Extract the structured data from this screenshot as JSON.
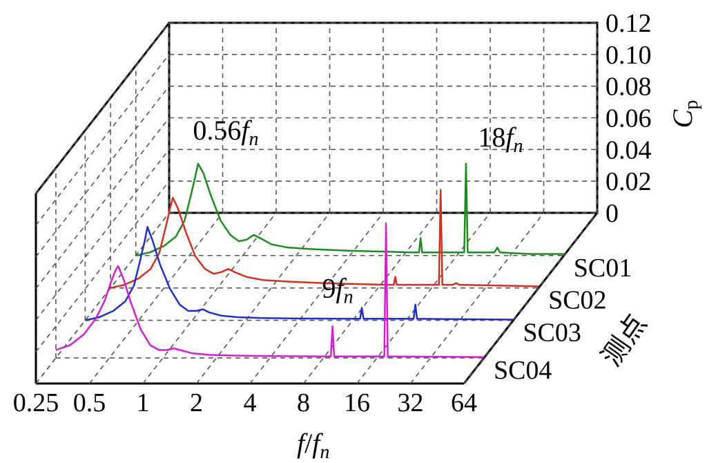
{
  "chart_data": {
    "type": "line",
    "style": "3d-waterfall",
    "x_scale": "log2",
    "xlim": [
      0.25,
      64
    ],
    "ylim": [
      0,
      0.12
    ],
    "x_ticks": [
      "0.25",
      "0.5",
      "1",
      "2",
      "4",
      "8",
      "16",
      "32",
      "64"
    ],
    "z_ticks": [
      "0",
      "0.02",
      "0.04",
      "0.06",
      "0.08",
      "0.10",
      "0.12"
    ],
    "xlabel": "f/fn",
    "ylabel": "Cp",
    "depth_label": "测点",
    "categories": [
      "SC01",
      "SC02",
      "SC03",
      "SC04"
    ],
    "annotations": [
      {
        "label": "0.56fn",
        "series": "SC01"
      },
      {
        "label": "18fn",
        "series": "SC01"
      },
      {
        "label": "9fn",
        "series": "SC03"
      }
    ],
    "series": [
      {
        "name": "SC01",
        "color": "#1f8a1f",
        "points": [
          [
            0.25,
            0.0
          ],
          [
            0.3,
            0.002
          ],
          [
            0.36,
            0.006
          ],
          [
            0.42,
            0.012
          ],
          [
            0.47,
            0.022
          ],
          [
            0.51,
            0.038
          ],
          [
            0.54,
            0.05
          ],
          [
            0.56,
            0.058
          ],
          [
            0.6,
            0.052
          ],
          [
            0.66,
            0.038
          ],
          [
            0.75,
            0.022
          ],
          [
            0.85,
            0.013
          ],
          [
            0.95,
            0.009
          ],
          [
            1.05,
            0.01
          ],
          [
            1.15,
            0.013
          ],
          [
            1.25,
            0.011
          ],
          [
            1.45,
            0.007
          ],
          [
            1.8,
            0.005
          ],
          [
            2.5,
            0.004
          ],
          [
            4,
            0.003
          ],
          [
            6,
            0.0025
          ],
          [
            9,
            0.002
          ],
          [
            9.8,
            0.002
          ],
          [
            10,
            0.011
          ],
          [
            10.2,
            0.002
          ],
          [
            11,
            0.002
          ],
          [
            16,
            0.002
          ],
          [
            17.6,
            0.002
          ],
          [
            18,
            0.058
          ],
          [
            18.4,
            0.002
          ],
          [
            20,
            0.002
          ],
          [
            26,
            0.002
          ],
          [
            27,
            0.005
          ],
          [
            28,
            0.002
          ],
          [
            40,
            0.001
          ],
          [
            64,
            0.001
          ]
        ]
      },
      {
        "name": "SC02",
        "color": "#d03020",
        "points": [
          [
            0.25,
            0.0
          ],
          [
            0.3,
            0.002
          ],
          [
            0.36,
            0.006
          ],
          [
            0.42,
            0.012
          ],
          [
            0.47,
            0.022
          ],
          [
            0.51,
            0.038
          ],
          [
            0.54,
            0.05
          ],
          [
            0.56,
            0.057
          ],
          [
            0.6,
            0.05
          ],
          [
            0.66,
            0.036
          ],
          [
            0.75,
            0.02
          ],
          [
            0.85,
            0.012
          ],
          [
            0.95,
            0.009
          ],
          [
            1.05,
            0.01
          ],
          [
            1.15,
            0.012
          ],
          [
            1.25,
            0.01
          ],
          [
            1.45,
            0.007
          ],
          [
            1.8,
            0.005
          ],
          [
            2.5,
            0.004
          ],
          [
            4,
            0.003
          ],
          [
            6,
            0.0025
          ],
          [
            9,
            0.002
          ],
          [
            9.8,
            0.002
          ],
          [
            10,
            0.007
          ],
          [
            10.2,
            0.002
          ],
          [
            11,
            0.002
          ],
          [
            17.6,
            0.002
          ],
          [
            18,
            0.062
          ],
          [
            18.4,
            0.002
          ],
          [
            21,
            0.002
          ],
          [
            22,
            0.003
          ],
          [
            23,
            0.002
          ],
          [
            64,
            0.001
          ]
        ]
      },
      {
        "name": "SC03",
        "color": "#2030c0",
        "points": [
          [
            0.25,
            0.0
          ],
          [
            0.3,
            0.002
          ],
          [
            0.36,
            0.006
          ],
          [
            0.42,
            0.012
          ],
          [
            0.47,
            0.022
          ],
          [
            0.51,
            0.038
          ],
          [
            0.54,
            0.05
          ],
          [
            0.56,
            0.059
          ],
          [
            0.6,
            0.05
          ],
          [
            0.66,
            0.035
          ],
          [
            0.75,
            0.02
          ],
          [
            0.85,
            0.01
          ],
          [
            0.95,
            0.006
          ],
          [
            1.05,
            0.006
          ],
          [
            1.15,
            0.007
          ],
          [
            1.25,
            0.005
          ],
          [
            1.45,
            0.003
          ],
          [
            1.8,
            0.002
          ],
          [
            2.5,
            0.0015
          ],
          [
            4,
            0.0012
          ],
          [
            8.8,
            0.001
          ],
          [
            9,
            0.008
          ],
          [
            9.2,
            0.001
          ],
          [
            17.6,
            0.001
          ],
          [
            18,
            0.01
          ],
          [
            18.4,
            0.001
          ],
          [
            64,
            0.0005
          ]
        ]
      },
      {
        "name": "SC04",
        "color": "#d020d0",
        "points": [
          [
            0.25,
            0.005
          ],
          [
            0.3,
            0.008
          ],
          [
            0.36,
            0.015
          ],
          [
            0.42,
            0.025
          ],
          [
            0.47,
            0.036
          ],
          [
            0.51,
            0.048
          ],
          [
            0.54,
            0.055
          ],
          [
            0.56,
            0.058
          ],
          [
            0.6,
            0.05
          ],
          [
            0.66,
            0.035
          ],
          [
            0.75,
            0.018
          ],
          [
            0.85,
            0.008
          ],
          [
            0.95,
            0.005
          ],
          [
            1.05,
            0.005
          ],
          [
            1.15,
            0.006
          ],
          [
            1.25,
            0.005
          ],
          [
            1.45,
            0.003
          ],
          [
            1.8,
            0.002
          ],
          [
            2.5,
            0.0015
          ],
          [
            4,
            0.0012
          ],
          [
            8.8,
            0.001
          ],
          [
            9,
            0.02
          ],
          [
            9.2,
            0.001
          ],
          [
            17.6,
            0.001
          ],
          [
            18,
            0.085
          ],
          [
            18.4,
            0.001
          ],
          [
            64,
            0.0005
          ]
        ]
      }
    ]
  }
}
